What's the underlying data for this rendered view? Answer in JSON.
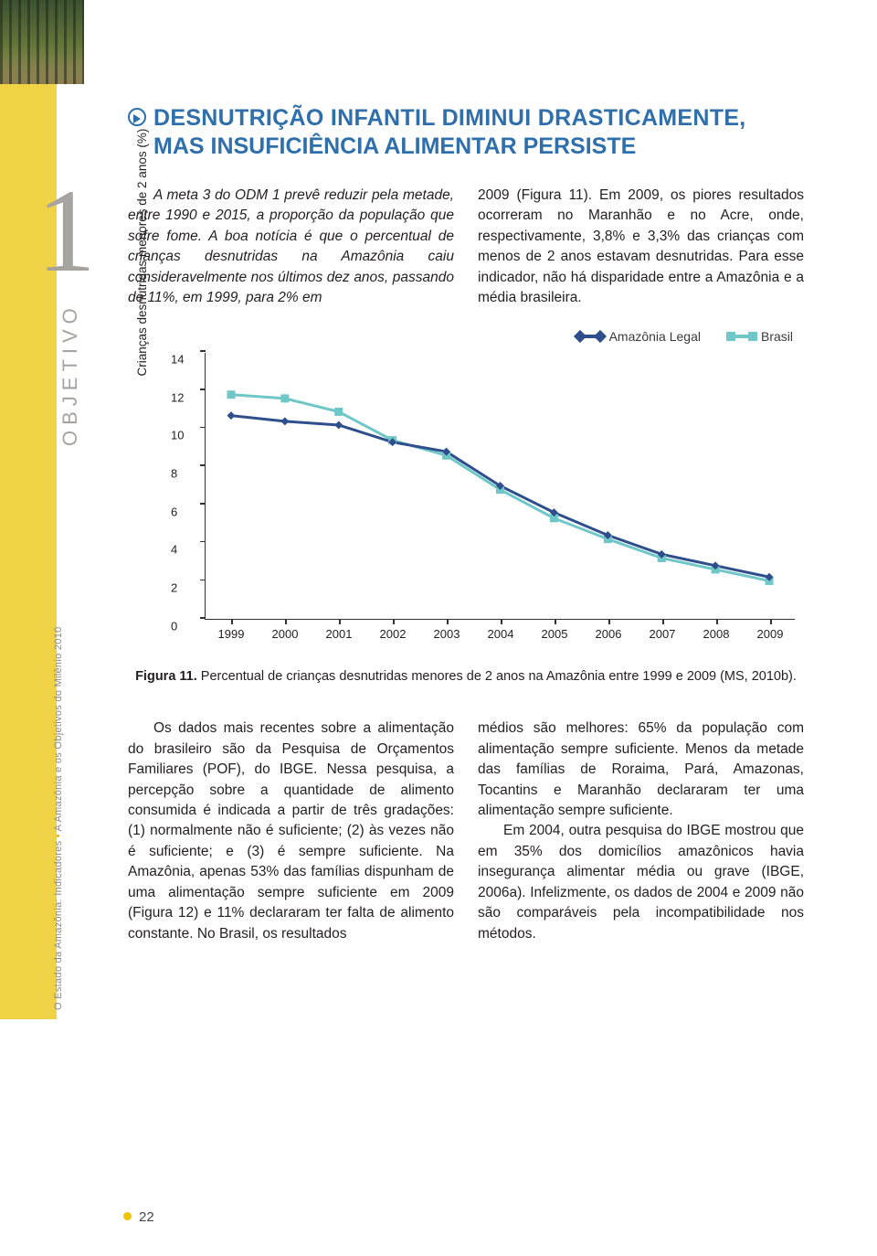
{
  "sidebar": {
    "chapter_number": "1",
    "objetivo": "OBJETIVO",
    "estado_prefix": "O Estado da Amazônia: Indicadores ",
    "estado_suffix": " A Amazônia e os Objetivos do Milênio 2010"
  },
  "headline_line1": "DESNUTRIÇÃO INFANTIL DIMINUI DRASTICAMENTE,",
  "headline_line2": "MAS INSUFICIÊNCIA ALIMENTAR PERSISTE",
  "para1": "A meta 3 do ODM 1 prevê reduzir pela metade, entre 1990 e 2015, a proporção da população que sofre fome. A boa notícia é que o percentual de crianças desnutridas na Amazônia caiu consideravelmente nos últimos dez anos, passando de 11%, em 1999, para 2% em",
  "para2": "2009 (Figura 11). Em 2009, os piores resultados ocorreram no Maranhão e no Acre, onde, respectivamente, 3,8% e 3,3% das crianças com menos de 2 anos estavam desnutridas. Para esse indicador, não há disparidade entre a Amazônia e a média brasileira.",
  "chart": {
    "type": "line",
    "legend": {
      "amazonia": "Amazônia Legal",
      "brasil": "Brasil"
    },
    "ylabel": "Crianças desnutridas menores de 2 anos (%)",
    "ylim": [
      0,
      14
    ],
    "ytick_step": 2,
    "years": [
      "1999",
      "2000",
      "2001",
      "2002",
      "2003",
      "2004",
      "2005",
      "2006",
      "2007",
      "2008",
      "2009"
    ],
    "series": {
      "amazonia_legal": {
        "color": "#2f4e8c",
        "marker": "diamond",
        "values": [
          10.7,
          10.4,
          10.2,
          9.3,
          8.8,
          7.0,
          5.6,
          4.4,
          3.4,
          2.8,
          2.2
        ]
      },
      "brasil": {
        "color": "#6fc7c7",
        "marker": "square",
        "values": [
          11.8,
          11.6,
          10.9,
          9.4,
          8.6,
          6.8,
          5.3,
          4.2,
          3.2,
          2.6,
          2.0
        ]
      }
    },
    "background_color": "#ffffff",
    "axis_color": "#333333",
    "line_width": 3,
    "marker_size": 9
  },
  "caption_strong": "Figura 11.",
  "caption_rest": " Percentual de crianças desnutridas menores de 2 anos na Amazônia entre 1999 e 2009 (MS, 2010b).",
  "para3": "Os dados mais recentes sobre a alimentação do brasileiro são da Pesquisa de Orçamentos Familiares (POF), do IBGE. Nessa pesquisa, a percepção sobre a quantidade de alimento consumida é indicada a partir de três gradações: (1) normalmente não é suficiente; (2) às vezes não é suficiente; e (3) é sempre suficiente. Na Amazônia, apenas 53% das famílias dispunham de uma alimentação sempre suficiente em 2009 (Figura 12) e 11% declararam ter falta de alimento constante. No Brasil, os resultados",
  "para4": "médios são melhores: 65% da população com alimentação sempre suficiente. Menos da metade das famílias de Roraima, Pará, Amazonas, Tocantins e Maranhão declararam ter uma alimentação sempre suficiente.",
  "para5": "Em 2004, outra pesquisa do IBGE mostrou que em 35% dos domicílios amazônicos havia insegurança alimentar média ou grave (IBGE, 2006a). Infelizmente, os dados de 2004 e 2009 não são comparáveis pela incompatibilidade nos métodos.",
  "page_number": "22"
}
